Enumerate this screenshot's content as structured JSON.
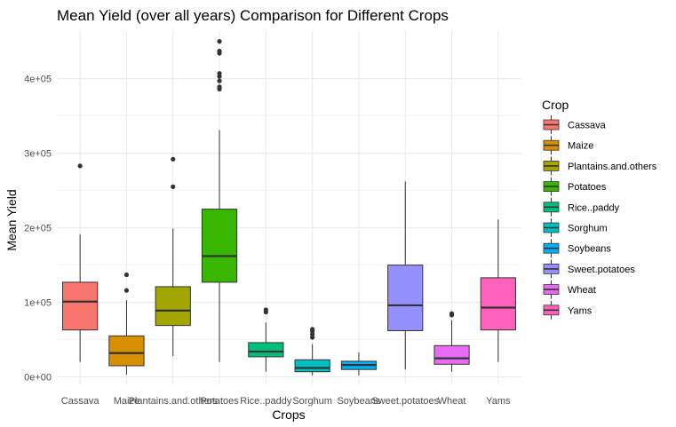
{
  "chart_data": {
    "type": "boxplot",
    "title": "Mean Yield (over all years) Comparison for Different Crops",
    "xlabel": "Crops",
    "ylabel": "Mean Yield",
    "ylim": [
      -10000,
      465000
    ],
    "yticks": [
      0,
      100000,
      200000,
      300000,
      400000
    ],
    "ytick_labels": [
      "0e+00",
      "1e+05",
      "2e+05",
      "3e+05",
      "4e+05"
    ],
    "grid": true,
    "legend": {
      "title": "Crop",
      "position": "right"
    },
    "categories": [
      "Cassava",
      "Maize",
      "Plantains.and.others",
      "Potatoes",
      "Rice..paddy",
      "Sorghum",
      "Soybeans",
      "Sweet.potatoes",
      "Wheat",
      "Yams"
    ],
    "boxes": [
      {
        "name": "Cassava",
        "color": "#F8766D",
        "min": 20000,
        "q1": 63000,
        "median": 101000,
        "q3": 127000,
        "max": 191000,
        "outliers": [
          283000
        ]
      },
      {
        "name": "Maize",
        "color": "#D89000",
        "min": 3000,
        "q1": 15000,
        "median": 32000,
        "q3": 55000,
        "max": 103000,
        "outliers": [
          116000,
          137000
        ]
      },
      {
        "name": "Plantains.and.others",
        "color": "#A3A500",
        "min": 28000,
        "q1": 69000,
        "median": 89000,
        "q3": 121000,
        "max": 199000,
        "outliers": [
          255000,
          292000
        ]
      },
      {
        "name": "Potatoes",
        "color": "#39B600",
        "min": 20000,
        "q1": 127000,
        "median": 162000,
        "q3": 225000,
        "max": 331000,
        "outliers": [
          386000,
          389000,
          397000,
          403000,
          407000,
          434000,
          437000,
          450000
        ]
      },
      {
        "name": "Rice..paddy",
        "color": "#00BF7D",
        "min": 7000,
        "q1": 27000,
        "median": 34000,
        "q3": 46000,
        "max": 73000,
        "outliers": [
          87000,
          90000
        ]
      },
      {
        "name": "Sorghum",
        "color": "#00BFC4",
        "min": 2000,
        "q1": 7000,
        "median": 12000,
        "q3": 23000,
        "max": 44000,
        "outliers": [
          53000,
          57000,
          61000,
          64000
        ]
      },
      {
        "name": "Soybeans",
        "color": "#00B0F6",
        "min": 2000,
        "q1": 10000,
        "median": 16000,
        "q3": 21000,
        "max": 33000,
        "outliers": []
      },
      {
        "name": "Sweet.potatoes",
        "color": "#9590FF",
        "min": 10000,
        "q1": 62000,
        "median": 96000,
        "q3": 150000,
        "max": 262000,
        "outliers": []
      },
      {
        "name": "Wheat",
        "color": "#E76BF3",
        "min": 7000,
        "q1": 17000,
        "median": 25000,
        "q3": 42000,
        "max": 76000,
        "outliers": [
          83000,
          85000
        ]
      },
      {
        "name": "Yams",
        "color": "#FF62BC",
        "min": 20000,
        "q1": 63000,
        "median": 93000,
        "q3": 133000,
        "max": 211000,
        "outliers": []
      }
    ]
  }
}
